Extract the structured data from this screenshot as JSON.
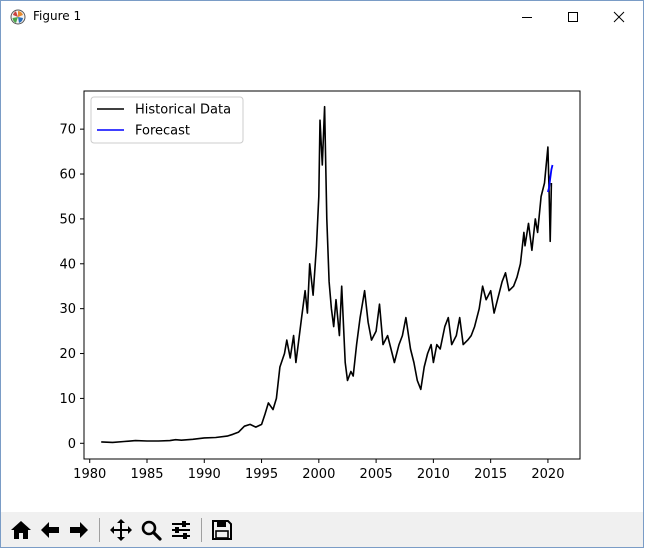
{
  "window": {
    "title": "Figure 1",
    "app_icon": "matplotlib-icon",
    "controls": [
      "minimize-icon",
      "maximize-icon",
      "close-icon"
    ]
  },
  "toolbar": {
    "buttons": [
      {
        "name": "home-button",
        "icon": "home-icon"
      },
      {
        "name": "back-button",
        "icon": "arrow-left-icon"
      },
      {
        "name": "forward-button",
        "icon": "arrow-right-icon"
      },
      {
        "name": "pan-button",
        "icon": "move-icon"
      },
      {
        "name": "zoom-button",
        "icon": "magnifier-icon"
      },
      {
        "name": "configure-subplots-button",
        "icon": "sliders-icon"
      },
      {
        "name": "save-button",
        "icon": "floppy-icon"
      }
    ]
  },
  "chart_data": {
    "type": "line",
    "title": "",
    "xlabel": "",
    "ylabel": "",
    "xlim": [
      1979.5,
      2022.8
    ],
    "ylim": [
      -3.5,
      78.5
    ],
    "xticks": [
      1980,
      1985,
      1990,
      1995,
      2000,
      2005,
      2010,
      2015,
      2020
    ],
    "yticks": [
      0,
      10,
      20,
      30,
      40,
      50,
      60,
      70
    ],
    "grid": false,
    "legend": {
      "placement": "top-left",
      "entries": [
        "Historical Data",
        "Forecast"
      ]
    },
    "series": [
      {
        "name": "Historical Data",
        "color": "#000000",
        "x": [
          1981.0,
          1982.0,
          1983.0,
          1984.0,
          1985.0,
          1986.0,
          1987.0,
          1987.5,
          1988.0,
          1989.0,
          1990.0,
          1991.0,
          1992.0,
          1992.5,
          1993.0,
          1993.5,
          1994.0,
          1994.5,
          1995.0,
          1995.3,
          1995.6,
          1996.0,
          1996.3,
          1996.6,
          1997.0,
          1997.2,
          1997.5,
          1997.8,
          1998.0,
          1998.2,
          1998.5,
          1998.8,
          1999.0,
          1999.2,
          1999.5,
          1999.8,
          2000.0,
          2000.1,
          2000.3,
          2000.5,
          2000.7,
          2000.9,
          2001.1,
          2001.3,
          2001.5,
          2001.8,
          2002.0,
          2002.3,
          2002.5,
          2002.8,
          2003.0,
          2003.3,
          2003.6,
          2004.0,
          2004.3,
          2004.6,
          2005.0,
          2005.3,
          2005.6,
          2006.0,
          2006.3,
          2006.6,
          2007.0,
          2007.3,
          2007.6,
          2008.0,
          2008.3,
          2008.6,
          2008.9,
          2009.2,
          2009.5,
          2009.8,
          2010.0,
          2010.3,
          2010.6,
          2011.0,
          2011.3,
          2011.6,
          2012.0,
          2012.3,
          2012.6,
          2013.0,
          2013.3,
          2013.6,
          2014.0,
          2014.3,
          2014.6,
          2015.0,
          2015.3,
          2015.6,
          2016.0,
          2016.3,
          2016.6,
          2017.0,
          2017.3,
          2017.6,
          2017.9,
          2018.0,
          2018.3,
          2018.6,
          2018.9,
          2019.1,
          2019.4,
          2019.7,
          2020.0,
          2020.1,
          2020.2,
          2020.3
        ],
        "y": [
          0.3,
          0.2,
          0.4,
          0.6,
          0.5,
          0.5,
          0.6,
          0.8,
          0.7,
          0.9,
          1.2,
          1.3,
          1.6,
          2.0,
          2.5,
          3.8,
          4.2,
          3.6,
          4.2,
          6.5,
          9.0,
          7.5,
          10.0,
          17.0,
          20.0,
          23.0,
          19.0,
          24.0,
          18.0,
          22.0,
          28.0,
          34.0,
          29.0,
          40.0,
          33.0,
          44.0,
          55.0,
          72.0,
          62.0,
          75.0,
          50.0,
          36.0,
          30.0,
          26.0,
          32.0,
          24.0,
          35.0,
          18.0,
          14.0,
          16.0,
          15.0,
          22.0,
          28.0,
          34.0,
          27.0,
          23.0,
          25.0,
          31.0,
          22.0,
          24.0,
          21.0,
          18.0,
          22.0,
          24.0,
          28.0,
          21.0,
          18.0,
          14.0,
          12.0,
          17.0,
          20.0,
          22.0,
          18.0,
          22.0,
          21.0,
          26.0,
          28.0,
          22.0,
          24.0,
          28.0,
          22.0,
          23.0,
          24.0,
          26.0,
          30.0,
          35.0,
          32.0,
          34.0,
          29.0,
          32.0,
          36.0,
          38.0,
          34.0,
          35.0,
          37.0,
          40.0,
          47.0,
          44.0,
          49.0,
          43.0,
          50.0,
          47.0,
          55.0,
          58.0,
          66.0,
          56.0,
          45.0,
          58.0
        ]
      },
      {
        "name": "Forecast",
        "color": "#0000ff",
        "x": [
          2020.0,
          2020.1,
          2020.2,
          2020.3,
          2020.4
        ],
        "y": [
          56.0,
          57.0,
          59.0,
          61.0,
          62.0
        ]
      }
    ]
  }
}
